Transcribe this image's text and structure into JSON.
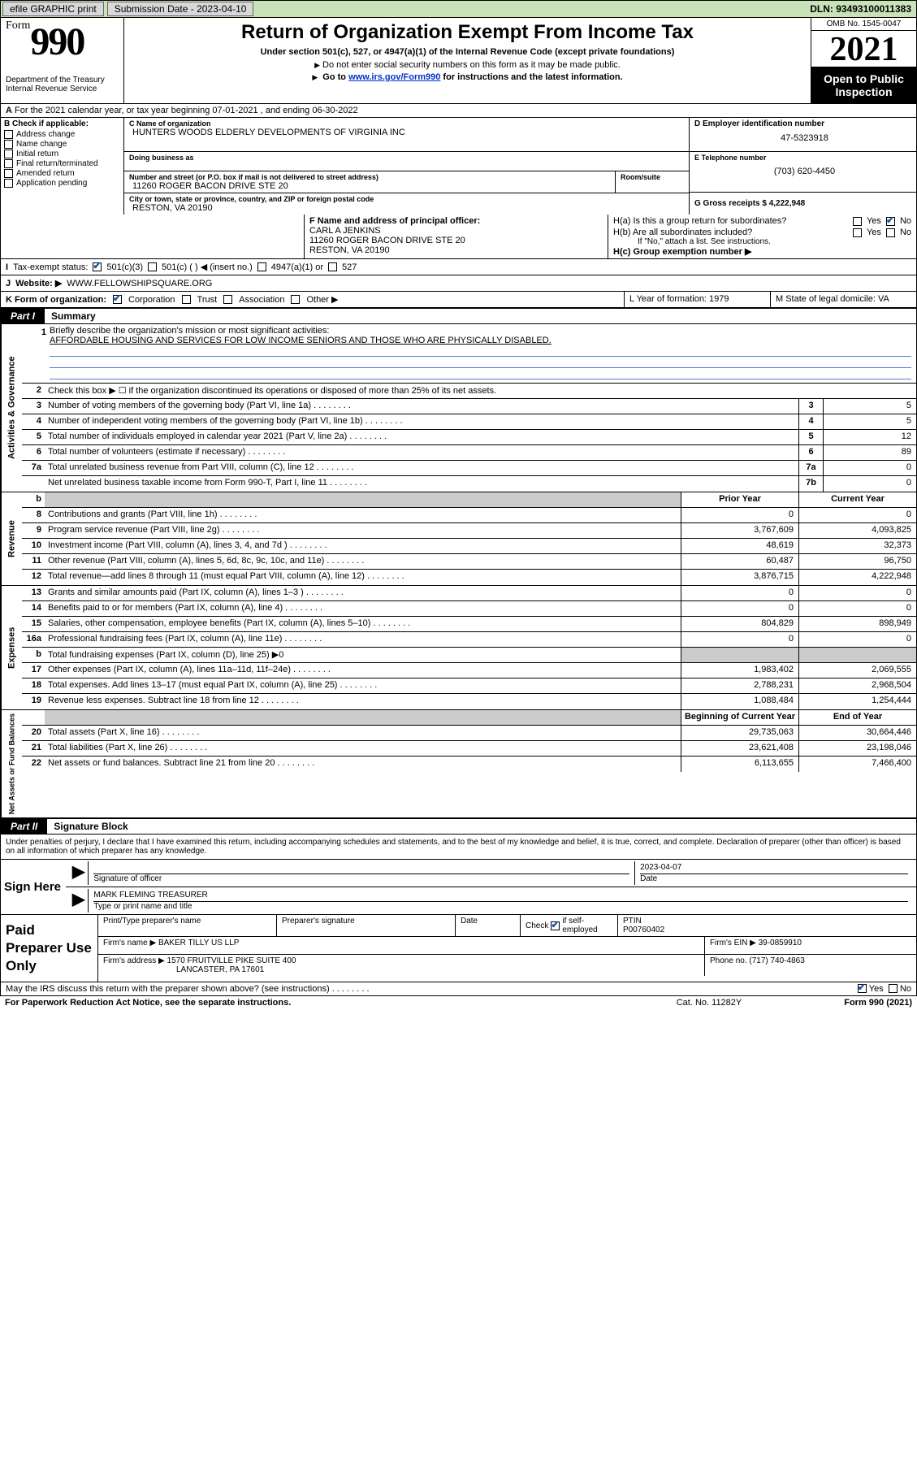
{
  "topbar": {
    "efile_label": "efile GRAPHIC print",
    "submission_label": "Submission Date - 2023-04-10",
    "dln_label": "DLN: 93493100011383"
  },
  "header": {
    "form_prefix": "Form",
    "form_number": "990",
    "dept": "Department of the Treasury",
    "irs": "Internal Revenue Service",
    "title": "Return of Organization Exempt From Income Tax",
    "subtitle": "Under section 501(c), 527, or 4947(a)(1) of the Internal Revenue Code (except private foundations)",
    "note1": "Do not enter social security numbers on this form as it may be made public.",
    "note2_pre": "Go to ",
    "note2_link": "www.irs.gov/Form990",
    "note2_post": " for instructions and the latest information.",
    "omb": "OMB No. 1545-0047",
    "year": "2021",
    "open_public": "Open to Public Inspection"
  },
  "row_a": "For the 2021 calendar year, or tax year beginning 07-01-2021   , and ending 06-30-2022",
  "col_b": {
    "title": "B Check if applicable:",
    "items": [
      "Address change",
      "Name change",
      "Initial return",
      "Final return/terminated",
      "Amended return",
      "Application pending"
    ]
  },
  "org": {
    "c_lbl": "C Name of organization",
    "name": "HUNTERS WOODS ELDERLY DEVELOPMENTS OF VIRGINIA INC",
    "dba_lbl": "Doing business as",
    "addr_lbl": "Number and street (or P.O. box if mail is not delivered to street address)",
    "room_lbl": "Room/suite",
    "addr": "11260 ROGER BACON DRIVE STE 20",
    "city_lbl": "City or town, state or province, country, and ZIP or foreign postal code",
    "city": "RESTON, VA  20190"
  },
  "col_d": {
    "ein_lbl": "D Employer identification number",
    "ein": "47-5323918",
    "phone_lbl": "E Telephone number",
    "phone": "(703) 620-4450",
    "gross_lbl": "G Gross receipts $ 4,222,948"
  },
  "row_f": {
    "f_lbl": "F Name and address of principal officer:",
    "f_name": "CARL A JENKINS",
    "f_addr1": "11260 ROGER BACON DRIVE STE 20",
    "f_addr2": "RESTON, VA  20190",
    "ha_lbl": "H(a)  Is this a group return for subordinates?",
    "hb_lbl": "H(b)  Are all subordinates included?",
    "hb_note": "If \"No,\" attach a list. See instructions.",
    "hc_lbl": "H(c)  Group exemption number ▶",
    "yes": "Yes",
    "no": "No"
  },
  "row_i": {
    "lbl": "Tax-exempt status:",
    "opt1": "501(c)(3)",
    "opt2": "501(c) (  ) ◀ (insert no.)",
    "opt3": "4947(a)(1) or",
    "opt4": "527"
  },
  "row_j": {
    "lbl": "Website: ▶",
    "val": "WWW.FELLOWSHIPSQUARE.ORG"
  },
  "row_k": {
    "lbl": "K Form of organization:",
    "corp": "Corporation",
    "trust": "Trust",
    "assoc": "Association",
    "other": "Other ▶",
    "l_lbl": "L Year of formation: 1979",
    "m_lbl": "M State of legal domicile: VA"
  },
  "part1": {
    "num": "Part I",
    "title": "Summary"
  },
  "section_labels": {
    "gov": "Activities & Governance",
    "rev": "Revenue",
    "exp": "Expenses",
    "net": "Net Assets or Fund Balances"
  },
  "gov": {
    "l1_lbl": "Briefly describe the organization's mission or most significant activities:",
    "l1_val": "AFFORDABLE HOUSING AND SERVICES FOR LOW INCOME SENIORS AND THOSE WHO ARE PHYSICALLY DISABLED.",
    "l2": "Check this box ▶ ☐  if the organization discontinued its operations or disposed of more than 25% of its net assets.",
    "l3": "Number of voting members of the governing body (Part VI, line 1a)",
    "l3v": "5",
    "l4": "Number of independent voting members of the governing body (Part VI, line 1b)",
    "l4v": "5",
    "l5": "Total number of individuals employed in calendar year 2021 (Part V, line 2a)",
    "l5v": "12",
    "l6": "Total number of volunteers (estimate if necessary)",
    "l6v": "89",
    "l7a": "Total unrelated business revenue from Part VIII, column (C), line 12",
    "l7av": "0",
    "l7b": "Net unrelated business taxable income from Form 990-T, Part I, line 11",
    "l7bv": "0"
  },
  "cols": {
    "prior": "Prior Year",
    "current": "Current Year",
    "begin": "Beginning of Current Year",
    "end": "End of Year"
  },
  "rev": [
    {
      "n": "8",
      "d": "Contributions and grants (Part VIII, line 1h)",
      "p": "0",
      "c": "0"
    },
    {
      "n": "9",
      "d": "Program service revenue (Part VIII, line 2g)",
      "p": "3,767,609",
      "c": "4,093,825"
    },
    {
      "n": "10",
      "d": "Investment income (Part VIII, column (A), lines 3, 4, and 7d )",
      "p": "48,619",
      "c": "32,373"
    },
    {
      "n": "11",
      "d": "Other revenue (Part VIII, column (A), lines 5, 6d, 8c, 9c, 10c, and 11e)",
      "p": "60,487",
      "c": "96,750"
    },
    {
      "n": "12",
      "d": "Total revenue—add lines 8 through 11 (must equal Part VIII, column (A), line 12)",
      "p": "3,876,715",
      "c": "4,222,948"
    }
  ],
  "exp": [
    {
      "n": "13",
      "d": "Grants and similar amounts paid (Part IX, column (A), lines 1–3 )",
      "p": "0",
      "c": "0"
    },
    {
      "n": "14",
      "d": "Benefits paid to or for members (Part IX, column (A), line 4)",
      "p": "0",
      "c": "0"
    },
    {
      "n": "15",
      "d": "Salaries, other compensation, employee benefits (Part IX, column (A), lines 5–10)",
      "p": "804,829",
      "c": "898,949"
    },
    {
      "n": "16a",
      "d": "Professional fundraising fees (Part IX, column (A), line 11e)",
      "p": "0",
      "c": "0"
    },
    {
      "n": "b",
      "d": "Total fundraising expenses (Part IX, column (D), line 25) ▶0",
      "shade": true
    },
    {
      "n": "17",
      "d": "Other expenses (Part IX, column (A), lines 11a–11d, 11f–24e)",
      "p": "1,983,402",
      "c": "2,069,555"
    },
    {
      "n": "18",
      "d": "Total expenses. Add lines 13–17 (must equal Part IX, column (A), line 25)",
      "p": "2,788,231",
      "c": "2,968,504"
    },
    {
      "n": "19",
      "d": "Revenue less expenses. Subtract line 18 from line 12",
      "p": "1,088,484",
      "c": "1,254,444"
    }
  ],
  "net": [
    {
      "n": "20",
      "d": "Total assets (Part X, line 16)",
      "p": "29,735,063",
      "c": "30,664,446"
    },
    {
      "n": "21",
      "d": "Total liabilities (Part X, line 26)",
      "p": "23,621,408",
      "c": "23,198,046"
    },
    {
      "n": "22",
      "d": "Net assets or fund balances. Subtract line 21 from line 20",
      "p": "6,113,655",
      "c": "7,466,400"
    }
  ],
  "part2": {
    "num": "Part II",
    "title": "Signature Block"
  },
  "penalty": "Under penalties of perjury, I declare that I have examined this return, including accompanying schedules and statements, and to the best of my knowledge and belief, it is true, correct, and complete. Declaration of preparer (other than officer) is based on all information of which preparer has any knowledge.",
  "sign": {
    "here": "Sign Here",
    "sig_lbl": "Signature of officer",
    "date_lbl": "Date",
    "date": "2023-04-07",
    "name": "MARK FLEMING TREASURER",
    "name_lbl": "Type or print name and title"
  },
  "paid": {
    "title": "Paid Preparer Use Only",
    "h1": "Print/Type preparer's name",
    "h2": "Preparer's signature",
    "h3": "Date",
    "h4_pre": "Check",
    "h4_post": "if self-employed",
    "h5": "PTIN",
    "ptin": "P00760402",
    "firm_lbl": "Firm's name     ▶",
    "firm": "BAKER TILLY US LLP",
    "ein_lbl": "Firm's EIN ▶ 39-0859910",
    "addr_lbl": "Firm's address ▶",
    "addr1": "1570 FRUITVILLE PIKE SUITE 400",
    "addr2": "LANCASTER, PA  17601",
    "phone_lbl": "Phone no. (717) 740-4863"
  },
  "footer": {
    "discuss": "May the IRS discuss this return with the preparer shown above? (see instructions)",
    "yes": "Yes",
    "no": "No",
    "paperwork": "For Paperwork Reduction Act Notice, see the separate instructions.",
    "cat": "Cat. No. 11282Y",
    "form": "Form 990 (2021)"
  }
}
